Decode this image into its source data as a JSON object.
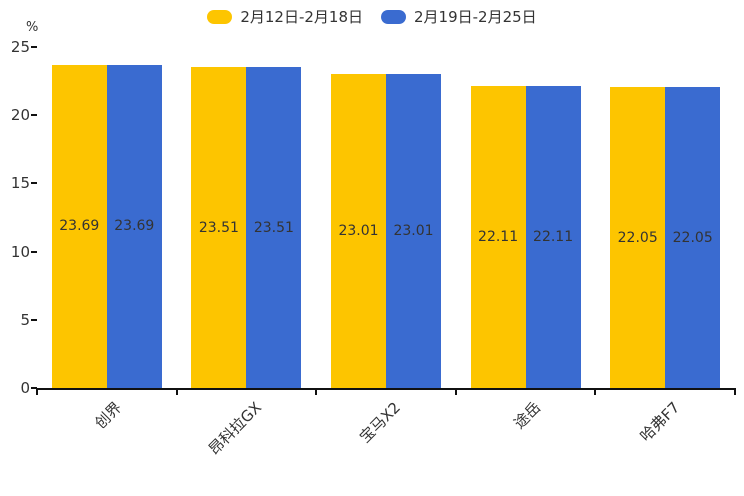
{
  "chart_data": {
    "type": "bar",
    "title": "",
    "unit_label": "%",
    "categories": [
      "创界",
      "昂科拉GX",
      "宝马X2",
      "途岳",
      "哈弗F7"
    ],
    "series": [
      {
        "name": "2月12日-2月18日",
        "color": "#FDC500",
        "values": [
          23.69,
          23.51,
          23.01,
          22.11,
          22.05
        ]
      },
      {
        "name": "2月19日-2月25日",
        "color": "#3A6BD0",
        "values": [
          23.69,
          23.51,
          23.01,
          22.11,
          22.05
        ]
      }
    ],
    "value_labels": [
      "23.69",
      "23.51",
      "23.01",
      "22.11",
      "22.05"
    ],
    "y_axis": {
      "min": 0,
      "max": 25,
      "step": 5,
      "ticks": [
        "25",
        "20",
        "15",
        "10",
        "5",
        "0"
      ]
    },
    "legend_position": "top-center",
    "grid": false,
    "value_label_position": "inside-middle",
    "x_label_rotation_deg": 45
  },
  "colors": {
    "series_yellow": "#FDC500",
    "series_blue": "#3A6BD0",
    "text": "#333333",
    "axis": "#111111",
    "background": "#ffffff"
  }
}
